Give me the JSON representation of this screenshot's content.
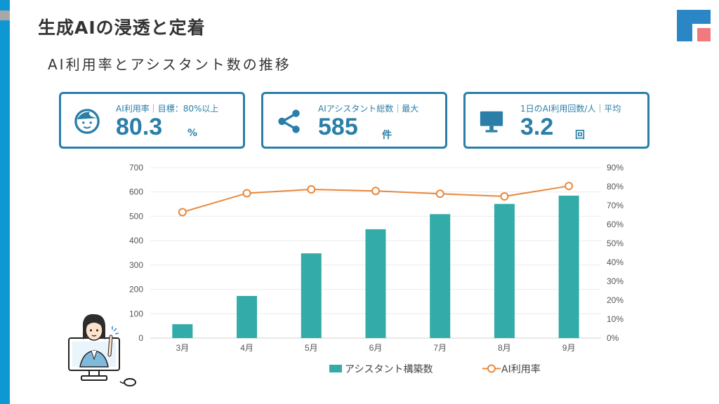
{
  "header": {
    "title": "生成AIの浸透と定着",
    "subtitle": "AI利用率とアシスタント数の推移"
  },
  "kpis": [
    {
      "icon": "person-face-icon",
      "label": "AI利用率｜目標：80%以上",
      "value": "80.3",
      "unit": "%"
    },
    {
      "icon": "share-icon",
      "label": "AIアシスタント総数｜最大",
      "value": "585",
      "unit": "件"
    },
    {
      "icon": "monitor-icon",
      "label": "1日のAI利用回数/人｜平均",
      "value": "3.2",
      "unit": "回"
    }
  ],
  "colors": {
    "accent": "#2a7ea8",
    "bar": "#33aba8",
    "line": "#e8883d",
    "sidebar": "#0e97d3"
  },
  "chart_data": {
    "type": "bar+line",
    "categories": [
      "3月",
      "4月",
      "5月",
      "6月",
      "7月",
      "8月",
      "9月"
    ],
    "series": [
      {
        "name": "アシスタント構築数",
        "type": "bar",
        "axis": "left",
        "values": [
          57,
          173,
          348,
          447,
          509,
          551,
          585
        ]
      },
      {
        "name": "AI利用率",
        "type": "line",
        "axis": "right",
        "values": [
          66.5,
          76.5,
          78.5,
          77.7,
          76.2,
          74.8,
          80.3
        ]
      }
    ],
    "left_axis": {
      "min": 0,
      "max": 700,
      "step": 100,
      "ticks": [
        "0",
        "100",
        "200",
        "300",
        "400",
        "500",
        "600",
        "700"
      ]
    },
    "right_axis": {
      "min": 0,
      "max": 90,
      "step": 10,
      "ticks": [
        "0%",
        "10%",
        "20%",
        "30%",
        "40%",
        "50%",
        "60%",
        "70%",
        "80%",
        "90%"
      ]
    },
    "legend": {
      "position": "bottom"
    },
    "grid": true
  }
}
